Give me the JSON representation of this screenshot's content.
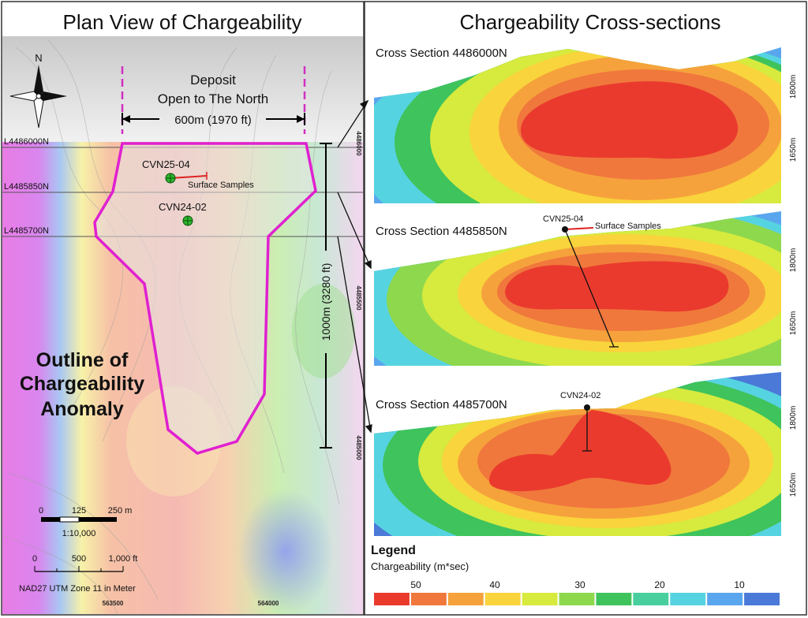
{
  "left_panel": {
    "title": "Plan View of Chargeability",
    "north_label": "N",
    "deposit_note_line1": "Deposit",
    "deposit_note_line2": "Open to The North",
    "width_measure": "600m (1970 ft)",
    "length_measure": "1000m (3280 ft)",
    "section_lines": [
      "L4486000N",
      "L4485850N",
      "L4485700N"
    ],
    "drillholes": [
      "CVN25-04",
      "CVN24-02"
    ],
    "surface_samples_label": "Surface Samples",
    "anomaly_label": [
      "Outline of",
      "Chargeability",
      "Anomaly"
    ],
    "scale_bar_m": [
      "0",
      "125",
      "250 m"
    ],
    "scale_ratio": "1:10,000",
    "scale_bar_ft": [
      "0",
      "500",
      "1,000 ft"
    ],
    "datum": "NAD27 UTM Zone 11 in Meter",
    "easting_labels": [
      "563500",
      "564000"
    ],
    "northing_labels": [
      "4486000",
      "4485500",
      "4485000"
    ]
  },
  "right_panel": {
    "title": "Chargeability Cross-sections",
    "sections": [
      {
        "label": "Cross Section 4486000N",
        "elevations": [
          "1800m",
          "1650m"
        ]
      },
      {
        "label": "Cross Section 4485850N",
        "elevations": [
          "1800m",
          "1650m"
        ],
        "drillhole": "CVN25-04",
        "samples": "Surface Samples"
      },
      {
        "label": "Cross Section 4485700N",
        "elevations": [
          "1800m",
          "1650m"
        ],
        "drillhole": "CVN24-02"
      }
    ]
  },
  "legend": {
    "title": "Legend",
    "subtitle": "Chargeability (m*sec)",
    "tick_labels": [
      "50",
      "40",
      "30",
      "20",
      "10"
    ],
    "colors": [
      "#ea3a2e",
      "#f0783c",
      "#f6a23c",
      "#f9d43c",
      "#d7ea3e",
      "#8ed84e",
      "#3fc35c",
      "#49cf9e",
      "#56d3e0",
      "#5aa6ee",
      "#4a79d8"
    ]
  }
}
